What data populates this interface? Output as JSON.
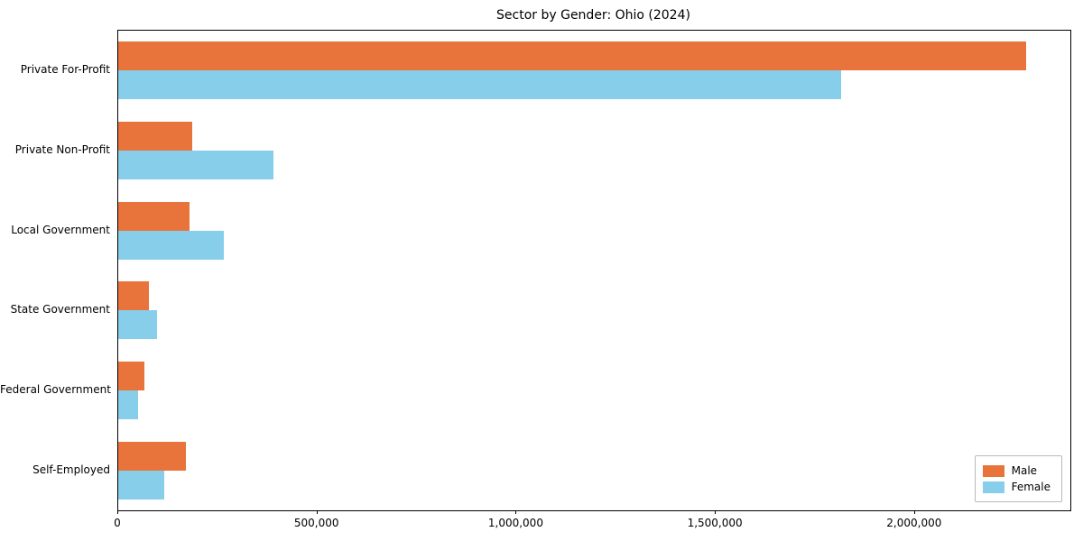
{
  "chart_data": {
    "type": "bar",
    "orientation": "horizontal",
    "title": "Sector by Gender: Ohio (2024)",
    "categories": [
      "Private For-Profit",
      "Private Non-Profit",
      "Local Government",
      "State Government",
      "Federal Government",
      "Self-Employed"
    ],
    "series": [
      {
        "name": "Male",
        "color": "#e8743b",
        "values": [
          2280000,
          185000,
          180000,
          78000,
          65000,
          170000
        ]
      },
      {
        "name": "Female",
        "color": "#87ceeb",
        "values": [
          1815000,
          390000,
          265000,
          98000,
          50000,
          115000
        ]
      }
    ],
    "xlim": [
      0,
      2390000
    ],
    "xticks": [
      0,
      500000,
      1000000,
      1500000,
      2000000
    ],
    "xtick_labels": [
      "0",
      "500,000",
      "1,000,000",
      "1,500,000",
      "2,000,000"
    ],
    "grid": false,
    "legend": {
      "position": "lower right",
      "entries": [
        "Male",
        "Female"
      ]
    }
  }
}
